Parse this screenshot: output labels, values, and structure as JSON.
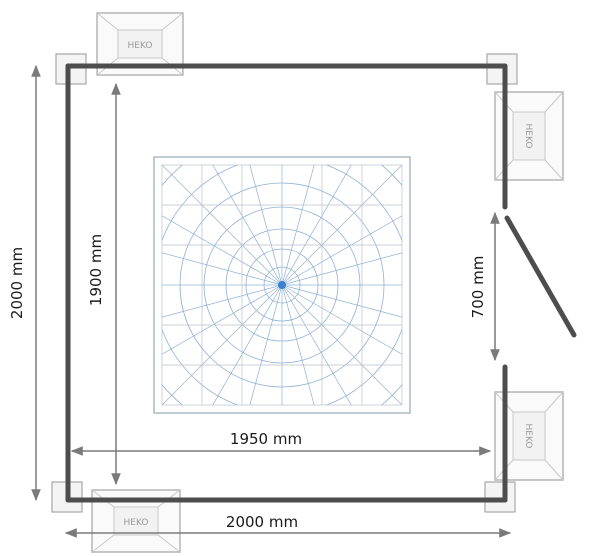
{
  "dimensions": {
    "outer_width": "2000 mm",
    "outer_height": "2000 mm",
    "inner_width": "1950 mm",
    "inner_height": "1900 mm",
    "door_width": "700 mm"
  },
  "colors": {
    "frame": "#4d4d4d",
    "dimension_line": "#7a7a7a",
    "grid_line": "#8fb0d6",
    "grid_center": "#3a7fd0",
    "heater_outline": "#b5b5b5"
  },
  "heater_units": [
    {
      "id": "top",
      "label": "HEKO"
    },
    {
      "id": "right-upper",
      "label": "HEKO"
    },
    {
      "id": "right-lower",
      "label": "HEKO"
    },
    {
      "id": "bottom",
      "label": "HEKO"
    }
  ]
}
